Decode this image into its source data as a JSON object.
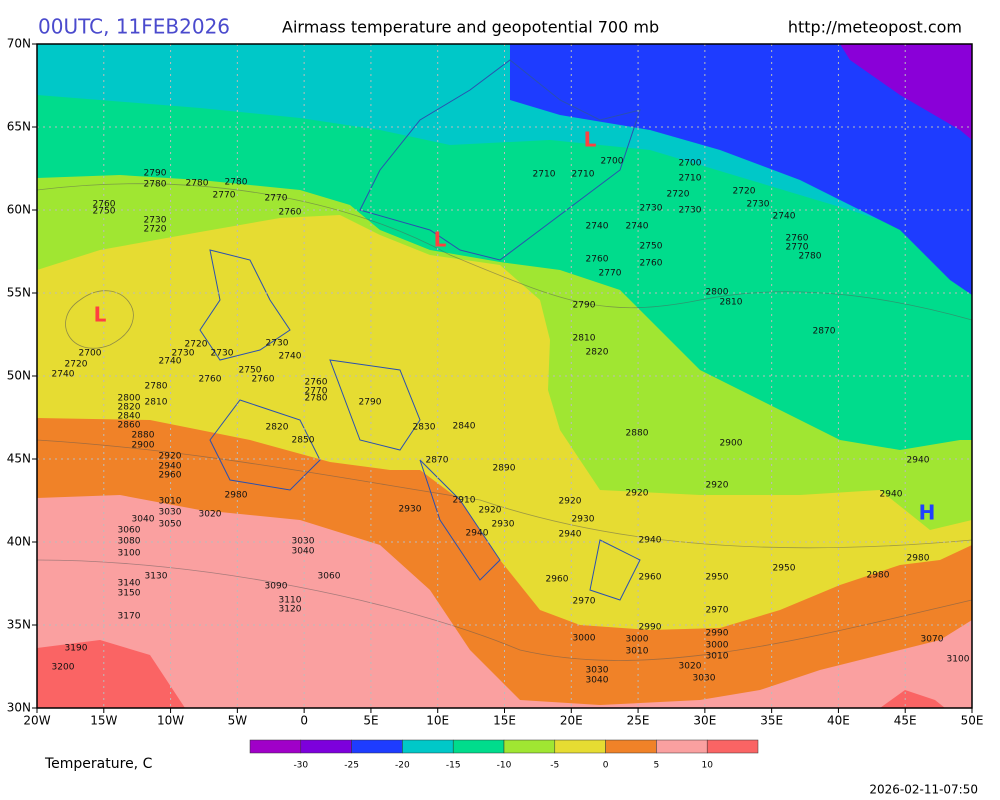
{
  "header": {
    "run": "00UTC, 11FEB2026",
    "title": "Airmass temperature and geopotential 700 mb",
    "url": "http://meteopost.com"
  },
  "lat_labels": [
    "70N",
    "65N",
    "60N",
    "55N",
    "50N",
    "45N",
    "40N",
    "35N",
    "30N"
  ],
  "lon_labels": [
    "20W",
    "15W",
    "10W",
    "5W",
    "0",
    "5E",
    "10E",
    "15E",
    "20E",
    "25E",
    "30E",
    "35E",
    "40E",
    "45E",
    "50E"
  ],
  "pressure_centers": [
    "L",
    "L",
    "L",
    "H"
  ],
  "contour_labels": [
    "2790",
    "2780",
    "2780",
    "2780",
    "2770",
    "2760",
    "2750",
    "2730",
    "2720",
    "2770",
    "2760",
    "2700",
    "2720",
    "2740",
    "2730",
    "2720",
    "2730",
    "2740",
    "2730",
    "2740",
    "2750",
    "2760",
    "2760",
    "2760",
    "2770",
    "2780",
    "2780",
    "2800",
    "2810",
    "2820",
    "2840",
    "2860",
    "2880",
    "2900",
    "2920",
    "2940",
    "2960",
    "2790",
    "2820",
    "2850",
    "2830",
    "2840",
    "2870",
    "2890",
    "2910",
    "2920",
    "2930",
    "2940",
    "2930",
    "2980",
    "3010",
    "3020",
    "3030",
    "3040",
    "3050",
    "3060",
    "3080",
    "3100",
    "3130",
    "3140",
    "3150",
    "3170",
    "3190",
    "3200",
    "3030",
    "3040",
    "3060",
    "3090",
    "3110",
    "3120",
    "2700",
    "2710",
    "2710",
    "2700",
    "2710",
    "2720",
    "2730",
    "2730",
    "2720",
    "2730",
    "2740",
    "2760",
    "2770",
    "2780",
    "2740",
    "2740",
    "2750",
    "2760",
    "2760",
    "2770",
    "2790",
    "2800",
    "2810",
    "2870",
    "2810",
    "2820",
    "2880",
    "2900",
    "2920",
    "2920",
    "2940",
    "2940",
    "2920",
    "2930",
    "2940",
    "2940",
    "2950",
    "2950",
    "2960",
    "2960",
    "2970",
    "2970",
    "2990",
    "3000",
    "3000",
    "3010",
    "2990",
    "3000",
    "3010",
    "3020",
    "3030",
    "3030",
    "3040",
    "2980",
    "2980",
    "3070",
    "3100"
  ],
  "legend": {
    "label": "Temperature, C",
    "colors": [
      "#a000c8",
      "#7d00dc",
      "#1e3cff",
      "#00c8c8",
      "#00dc8c",
      "#a0e632",
      "#e6dc32",
      "#f08228",
      "#faa0a0",
      "#fa6464"
    ],
    "ticks": [
      "-30",
      "-25",
      "-20",
      "-15",
      "-10",
      "-5",
      "0",
      "5",
      "10"
    ]
  },
  "timestamp": "2026-02-11-07:50"
}
